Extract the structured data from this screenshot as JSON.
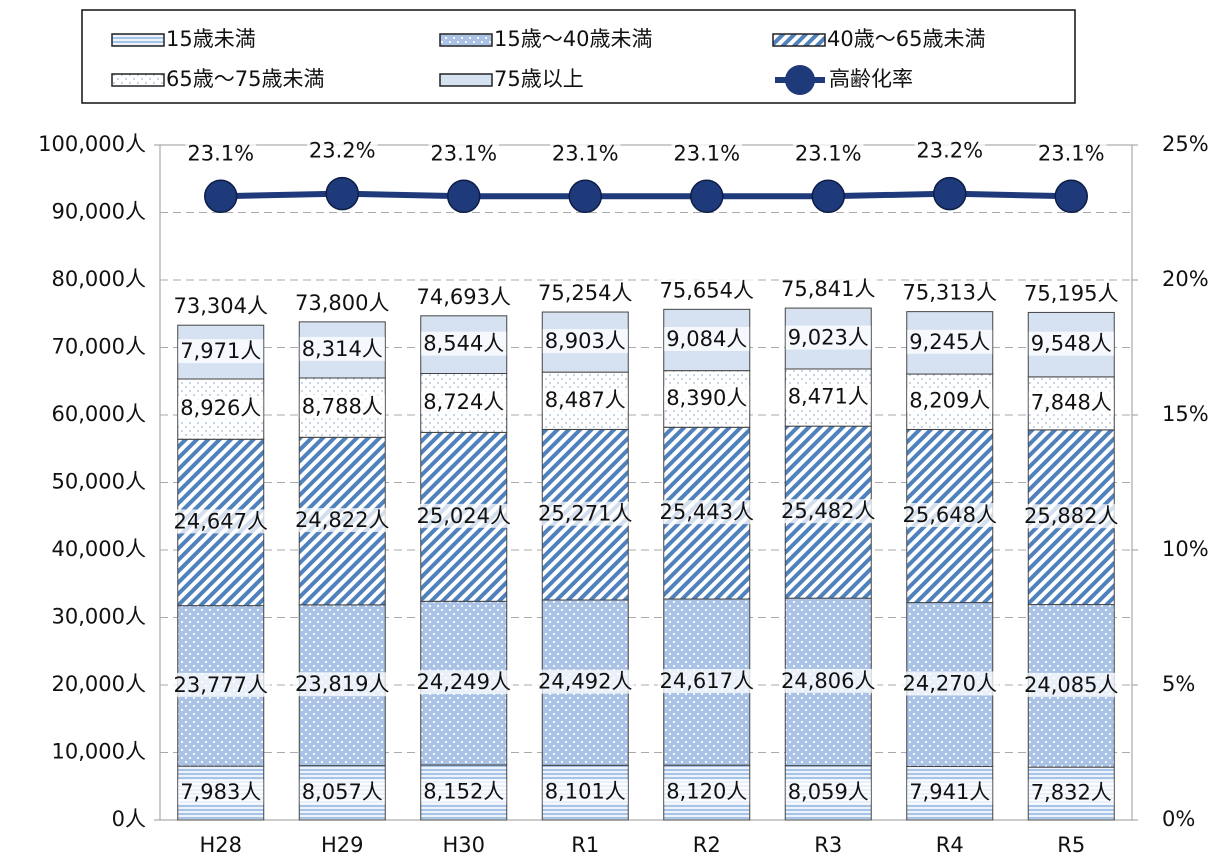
{
  "chart_data": {
    "type": "bar",
    "stacked": true,
    "categories": [
      "H28",
      "H29",
      "H30",
      "R1",
      "R2",
      "R3",
      "R4",
      "R5"
    ],
    "series": [
      {
        "name": "15歳未満",
        "color": "#8eb4e3",
        "values": [
          7983,
          8057,
          8152,
          8101,
          8120,
          8059,
          7941,
          7832
        ],
        "value_labels": [
          "7,983人",
          "8,057人",
          "8,152人",
          "8,101人",
          "8,120人",
          "8,059人",
          "7,941人",
          "7,832人"
        ]
      },
      {
        "name": "15歳～40歳未満",
        "color": "#a9c2e6",
        "values": [
          23777,
          23819,
          24249,
          24492,
          24617,
          24806,
          24270,
          24085
        ],
        "value_labels": [
          "23,777人",
          "23,819人",
          "24,249人",
          "24,492人",
          "24,617人",
          "24,806人",
          "24,270人",
          "24,085人"
        ]
      },
      {
        "name": "40歳～65歳未満",
        "color": "#4f81bd",
        "values": [
          24647,
          24822,
          25024,
          25271,
          25443,
          25482,
          25648,
          25882
        ],
        "value_labels": [
          "24,647人",
          "24,822人",
          "25,024人",
          "25,271人",
          "25,443人",
          "25,482人",
          "25,648人",
          "25,882人"
        ]
      },
      {
        "name": "65歳～75歳未満",
        "color": "#9fb8d8",
        "values": [
          8926,
          8788,
          8724,
          8487,
          8390,
          8471,
          8209,
          7848
        ],
        "value_labels": [
          "8,926人",
          "8,788人",
          "8,724人",
          "8,487人",
          "8,390人",
          "8,471人",
          "8,209人",
          "7,848人"
        ]
      },
      {
        "name": "75歳以上",
        "color": "#d6e2f1",
        "values": [
          7971,
          8314,
          8544,
          8903,
          9084,
          9023,
          9245,
          9548
        ],
        "value_labels": [
          "7,971人",
          "8,314人",
          "8,544人",
          "8,903人",
          "9,084人",
          "9,023人",
          "9,245人",
          "9,548人"
        ]
      },
      {
        "name": "高齢化率",
        "type": "line",
        "axis": "y2",
        "color": "#1f3a7a",
        "values": [
          23.1,
          23.2,
          23.1,
          23.1,
          23.1,
          23.1,
          23.2,
          23.1
        ],
        "value_labels": [
          "23.1%",
          "23.2%",
          "23.1%",
          "23.1%",
          "23.1%",
          "23.1%",
          "23.2%",
          "23.1%"
        ]
      }
    ],
    "totals": [
      73304,
      73800,
      74693,
      75254,
      75654,
      75841,
      75313,
      75195
    ],
    "total_labels": [
      "73,304人",
      "73,800人",
      "74,693人",
      "75,254人",
      "75,654人",
      "75,841人",
      "75,313人",
      "75,195人"
    ],
    "ylim": [
      0,
      100000
    ],
    "yticks": [
      {
        "value": 0,
        "label": "0人"
      },
      {
        "value": 10000,
        "label": "10,000人"
      },
      {
        "value": 20000,
        "label": "20,000人"
      },
      {
        "value": 30000,
        "label": "30,000人"
      },
      {
        "value": 40000,
        "label": "40,000人"
      },
      {
        "value": 50000,
        "label": "50,000人"
      },
      {
        "value": 60000,
        "label": "60,000人"
      },
      {
        "value": 70000,
        "label": "70,000人"
      },
      {
        "value": 80000,
        "label": "80,000人"
      },
      {
        "value": 90000,
        "label": "90,000人"
      },
      {
        "value": 100000,
        "label": "100,000人"
      }
    ],
    "y2lim": [
      0,
      25
    ],
    "y2ticks": [
      {
        "value": 0,
        "label": "0%"
      },
      {
        "value": 5,
        "label": "5%"
      },
      {
        "value": 10,
        "label": "10%"
      },
      {
        "value": 15,
        "label": "15%"
      },
      {
        "value": 20,
        "label": "20%"
      },
      {
        "value": 25,
        "label": "25%"
      }
    ],
    "grid": true,
    "legend": "top"
  }
}
